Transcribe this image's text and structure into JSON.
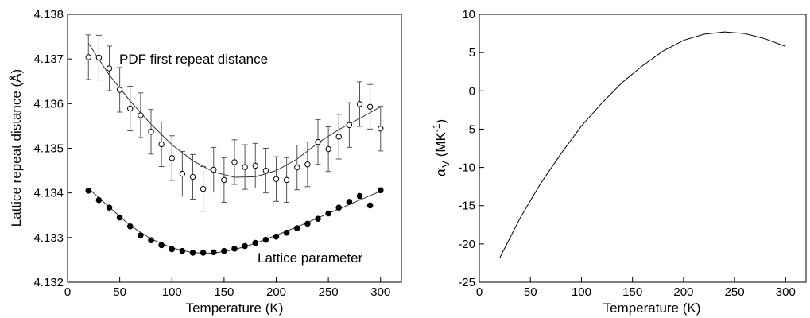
{
  "chart_data": [
    {
      "type": "scatter",
      "xlabel": "Temperature (K)",
      "ylabel": "Lattice repeat distance (Å)",
      "xlim": [
        0,
        320
      ],
      "ylim": [
        4.132,
        4.138
      ],
      "xticks": [
        "0",
        "50",
        "100",
        "150",
        "200",
        "250",
        "300"
      ],
      "yticks": [
        "4.132",
        "4.133",
        "4.134",
        "4.135",
        "4.136",
        "4.137",
        "4.138"
      ],
      "grid": false,
      "annotations": [
        "PDF first repeat distance",
        "Lattice parameter"
      ],
      "series": [
        {
          "name": "PDF first repeat distance",
          "marker": "open-circle",
          "error_bars": true,
          "x": [
            20,
            30,
            40,
            50,
            60,
            70,
            80,
            90,
            100,
            110,
            120,
            130,
            140,
            150,
            160,
            170,
            180,
            190,
            200,
            210,
            220,
            230,
            240,
            250,
            260,
            270,
            280,
            290,
            300
          ],
          "y": [
            4.13704,
            4.13703,
            4.13679,
            4.13631,
            4.13589,
            4.13574,
            4.13537,
            4.13509,
            4.13478,
            4.13443,
            4.13436,
            4.13409,
            4.13452,
            4.13429,
            4.13469,
            4.13458,
            4.13461,
            4.1345,
            4.13431,
            4.13429,
            4.13457,
            4.13464,
            4.13514,
            4.13498,
            4.13526,
            4.13552,
            4.13599,
            4.13593,
            4.13544
          ],
          "error": [
            0.0005,
            0.0005,
            0.0005,
            0.0005,
            0.0005,
            0.0005,
            0.0005,
            0.0005,
            0.0005,
            0.0005,
            0.0005,
            0.0005,
            0.0005,
            0.0005,
            0.0005,
            0.0005,
            0.0005,
            0.0005,
            0.0005,
            0.0005,
            0.0005,
            0.0005,
            0.0005,
            0.0005,
            0.0005,
            0.0005,
            0.0005,
            0.0005,
            0.0005
          ],
          "fit_x": [
            20,
            40,
            60,
            80,
            100,
            120,
            140,
            160,
            180,
            200,
            220,
            240,
            260,
            280,
            300
          ],
          "fit_y": [
            4.13735,
            4.13664,
            4.13606,
            4.13554,
            4.13508,
            4.13472,
            4.13447,
            4.13435,
            4.13436,
            4.1345,
            4.13476,
            4.13512,
            4.13542,
            4.13567,
            4.13593
          ]
        },
        {
          "name": "Lattice parameter",
          "marker": "filled-circle",
          "x": [
            20,
            30,
            40,
            50,
            60,
            70,
            80,
            90,
            100,
            110,
            120,
            130,
            140,
            150,
            160,
            170,
            180,
            190,
            200,
            210,
            220,
            230,
            240,
            250,
            260,
            270,
            280,
            290,
            300
          ],
          "y": [
            4.13405,
            4.13384,
            4.13367,
            4.13345,
            4.13325,
            4.13305,
            4.13294,
            4.13283,
            4.13274,
            4.1327,
            4.13266,
            4.13266,
            4.13267,
            4.1327,
            4.13275,
            4.13281,
            4.13288,
            4.13295,
            4.13302,
            4.13311,
            4.13321,
            4.13331,
            4.13342,
            4.13354,
            4.13367,
            4.1338,
            4.13393,
            4.13372,
            4.13406
          ],
          "fit_x": [
            20,
            40,
            60,
            80,
            100,
            120,
            140,
            160,
            180,
            200,
            220,
            240,
            260,
            280,
            300
          ],
          "fit_y": [
            4.1341,
            4.13368,
            4.13327,
            4.13297,
            4.13277,
            4.13266,
            4.13265,
            4.13273,
            4.13287,
            4.13305,
            4.13324,
            4.13344,
            4.13364,
            4.13384,
            4.13404
          ]
        }
      ]
    },
    {
      "type": "line",
      "xlabel": "Temperature (K)",
      "ylabel": {
        "symbol": "α",
        "subscript": "V",
        "unit_base": " (MK",
        "unit_exp": "-1",
        "unit_end": ")"
      },
      "xlim": [
        0,
        320
      ],
      "ylim": [
        -25,
        10
      ],
      "xticks": [
        "0",
        "50",
        "100",
        "150",
        "200",
        "250",
        "300"
      ],
      "yticks": [
        "-25",
        "-20",
        "-15",
        "-10",
        "-5",
        "0",
        "5",
        "10"
      ],
      "grid": false,
      "series": [
        {
          "x": [
            20,
            40,
            60,
            80,
            100,
            120,
            140,
            160,
            180,
            200,
            220,
            240,
            260,
            280,
            300
          ],
          "y": [
            -21.8,
            -16.6,
            -12.1,
            -8.2,
            -4.6,
            -1.6,
            1.1,
            3.3,
            5.2,
            6.6,
            7.4,
            7.7,
            7.5,
            6.8,
            5.8
          ]
        }
      ]
    }
  ]
}
